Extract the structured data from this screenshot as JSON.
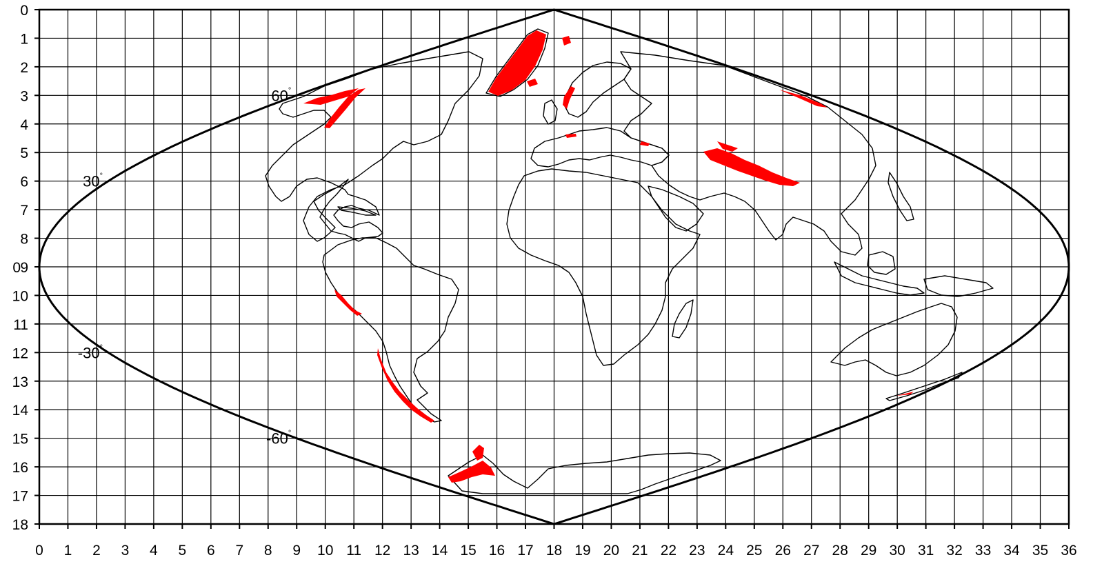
{
  "map": {
    "projection": "sinusoidal",
    "grid": true,
    "x_ticks": [
      "0",
      "1",
      "2",
      "3",
      "4",
      "5",
      "6",
      "7",
      "8",
      "9",
      "10",
      "11",
      "12",
      "13",
      "14",
      "15",
      "16",
      "17",
      "18",
      "19",
      "20",
      "21",
      "22",
      "23",
      "24",
      "25",
      "26",
      "27",
      "28",
      "29",
      "30",
      "31",
      "32",
      "33",
      "34",
      "35",
      "36"
    ],
    "y_ticks": [
      "0",
      "1",
      "2",
      "3",
      "4",
      "5",
      "6",
      "7",
      "8",
      "9",
      "10",
      "11",
      "12",
      "13",
      "14",
      "15",
      "16",
      "17",
      "18"
    ],
    "left_extra_label": "0",
    "latitude_labels": [
      {
        "text": "60",
        "lat": 60
      },
      {
        "text": "30",
        "lat": 30
      },
      {
        "text": "-30",
        "lat": -30
      },
      {
        "text": "-60",
        "lat": -60
      }
    ],
    "degree_symbol": "°",
    "colors": {
      "background": "#ffffff",
      "grid": "#000000",
      "coastline": "#000000",
      "highlight": "#ff0000"
    }
  }
}
